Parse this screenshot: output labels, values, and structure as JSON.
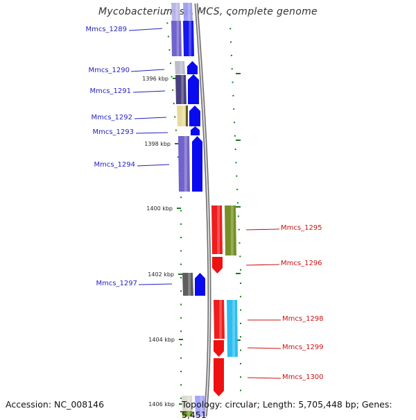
{
  "title": "Mycobacterium sp. MCS, complete genome",
  "accession": "Accession: NC_008146",
  "summary": "Topology: circular; Length: 5,705,448 bp; Genes: 5,451",
  "colors": {
    "plus_label": "#1f1fbf",
    "minus_label": "#cc1111",
    "tick": "#1a7a1a",
    "backbone": "#9a9a9a"
  },
  "kbp_labels": [
    "1396 kbp",
    "1398 kbp",
    "1400 kbp",
    "1402 kbp",
    "1404 kbp",
    "1406 kbp"
  ],
  "genes": [
    {
      "name": "Mmcs_1289",
      "strand": "+"
    },
    {
      "name": "Mmcs_1290",
      "strand": "+"
    },
    {
      "name": "Mmcs_1291",
      "strand": "+"
    },
    {
      "name": "Mmcs_1292",
      "strand": "+"
    },
    {
      "name": "Mmcs_1293",
      "strand": "+"
    },
    {
      "name": "Mmcs_1294",
      "strand": "+"
    },
    {
      "name": "Mmcs_1295",
      "strand": "-"
    },
    {
      "name": "Mmcs_1296",
      "strand": "-"
    },
    {
      "name": "Mmcs_1297",
      "strand": "+"
    },
    {
      "name": "Mmcs_1298",
      "strand": "-"
    },
    {
      "name": "Mmcs_1299",
      "strand": "-"
    },
    {
      "name": "Mmcs_1300",
      "strand": "-"
    }
  ]
}
